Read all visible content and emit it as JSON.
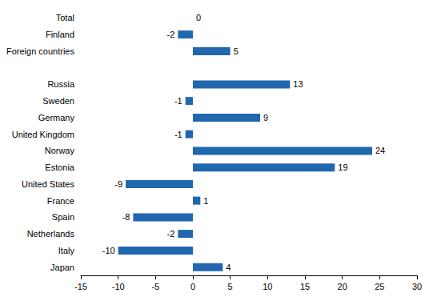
{
  "chart_data": {
    "type": "bar",
    "orientation": "horizontal",
    "categories": [
      "Total",
      "Finland",
      "Foreign countries",
      null,
      "Russia",
      "Sweden",
      "Germany",
      "United Kingdom",
      "Norway",
      "Estonia",
      "United States",
      "France",
      "Spain",
      "Netherlands",
      "Italy",
      "Japan"
    ],
    "values": [
      0,
      -2,
      5,
      null,
      13,
      -1,
      9,
      -1,
      24,
      19,
      -9,
      1,
      -8,
      -2,
      -10,
      4
    ],
    "color": "#2167b0",
    "xlim": [
      -15,
      30
    ],
    "xticks": [
      -15,
      -10,
      -5,
      0,
      5,
      10,
      15,
      20,
      25,
      30
    ],
    "grid": false,
    "data_labels": true
  }
}
